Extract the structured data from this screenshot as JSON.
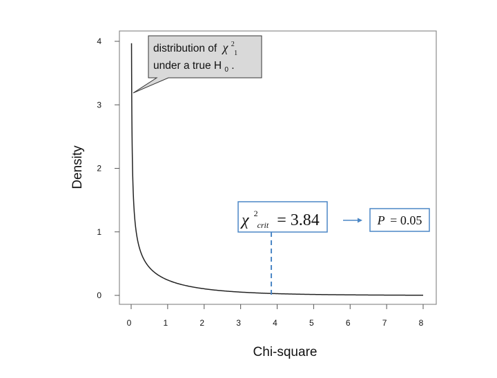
{
  "chart_data": {
    "type": "line",
    "title": "",
    "xlabel": "Chi-square",
    "ylabel": "Density",
    "xlim": [
      0,
      8
    ],
    "ylim": [
      0,
      4
    ],
    "x_ticks": [
      "0",
      "1",
      "2",
      "3",
      "4",
      "5",
      "6",
      "7",
      "8"
    ],
    "y_ticks": [
      "0",
      "1",
      "2",
      "3",
      "4"
    ],
    "grid": false,
    "legend": "none",
    "series": [
      {
        "distribution": "chi-square",
        "df": 1,
        "x_range": [
          0.01,
          8
        ],
        "color": "#222222"
      }
    ],
    "critical_value": 3.84,
    "critical_line_color": "#4a86c5",
    "annotations": {
      "distribution_callout": {
        "line1": "distribution of",
        "line1_symbol": "χ",
        "line1_sup": "2",
        "line1_sub": "1",
        "line2": "under a true H",
        "line2_sub": "0",
        "line2_end": ".",
        "fill": "#d9d9d9"
      },
      "critical_box": {
        "symbol": "χ",
        "sup": "2",
        "sub": "crit",
        "equals": "= 3.84"
      },
      "arrow": "→",
      "p_box": {
        "label": "P",
        "equals": "= 0.05"
      }
    }
  }
}
